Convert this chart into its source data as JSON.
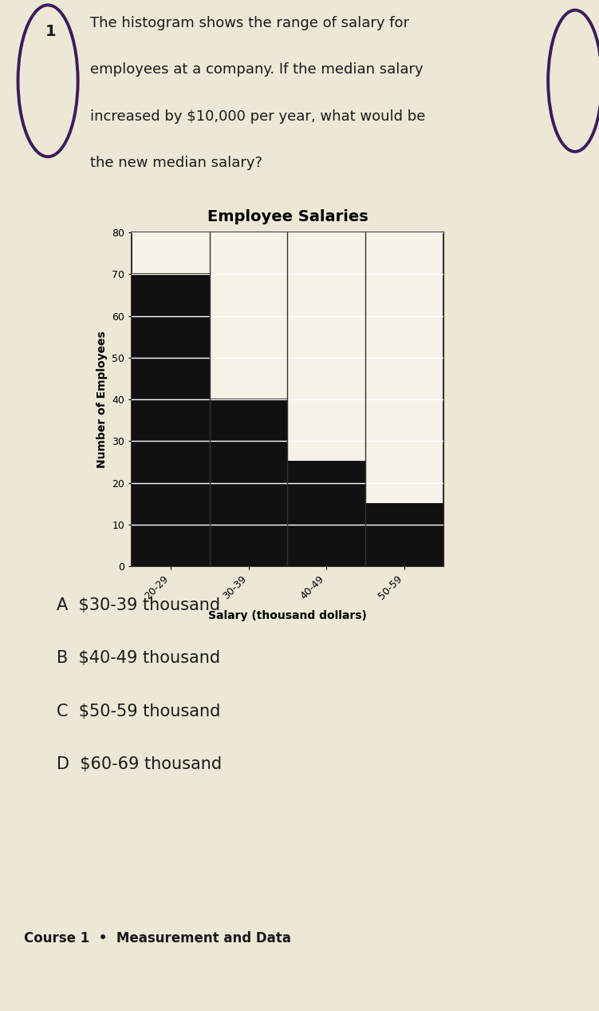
{
  "title": "Employee Salaries",
  "xlabel": "Salary (thousand dollars)",
  "ylabel": "Number of Employees",
  "categories": [
    "20-29",
    "30-39",
    "40-49",
    "50-59"
  ],
  "values": [
    70,
    40,
    25,
    15
  ],
  "bar_color": "#111111",
  "bar_edge_color": "#111111",
  "ylim": [
    0,
    80
  ],
  "yticks": [
    0,
    10,
    20,
    30,
    40,
    50,
    60,
    70,
    80
  ],
  "background_color": "#ede8d5",
  "chart_bg_color": "#f5f2e8",
  "question_line1": "The histogram shows the range of salary for",
  "question_line2": "employees at a company. If the median salary",
  "question_line3": "increased by $10,000 per year, what would be",
  "question_line4": "the new median salary?",
  "choices": [
    "A  $30-39 thousand",
    "B  $40-49 thousand",
    "C  $50-59 thousand",
    "D  $60-69 thousand"
  ],
  "footer": "Course 1  •  Measurement and Data",
  "title_fontsize": 14,
  "axis_label_fontsize": 10,
  "tick_fontsize": 9,
  "question_fontsize": 13,
  "choices_fontsize": 15,
  "footer_fontsize": 12
}
